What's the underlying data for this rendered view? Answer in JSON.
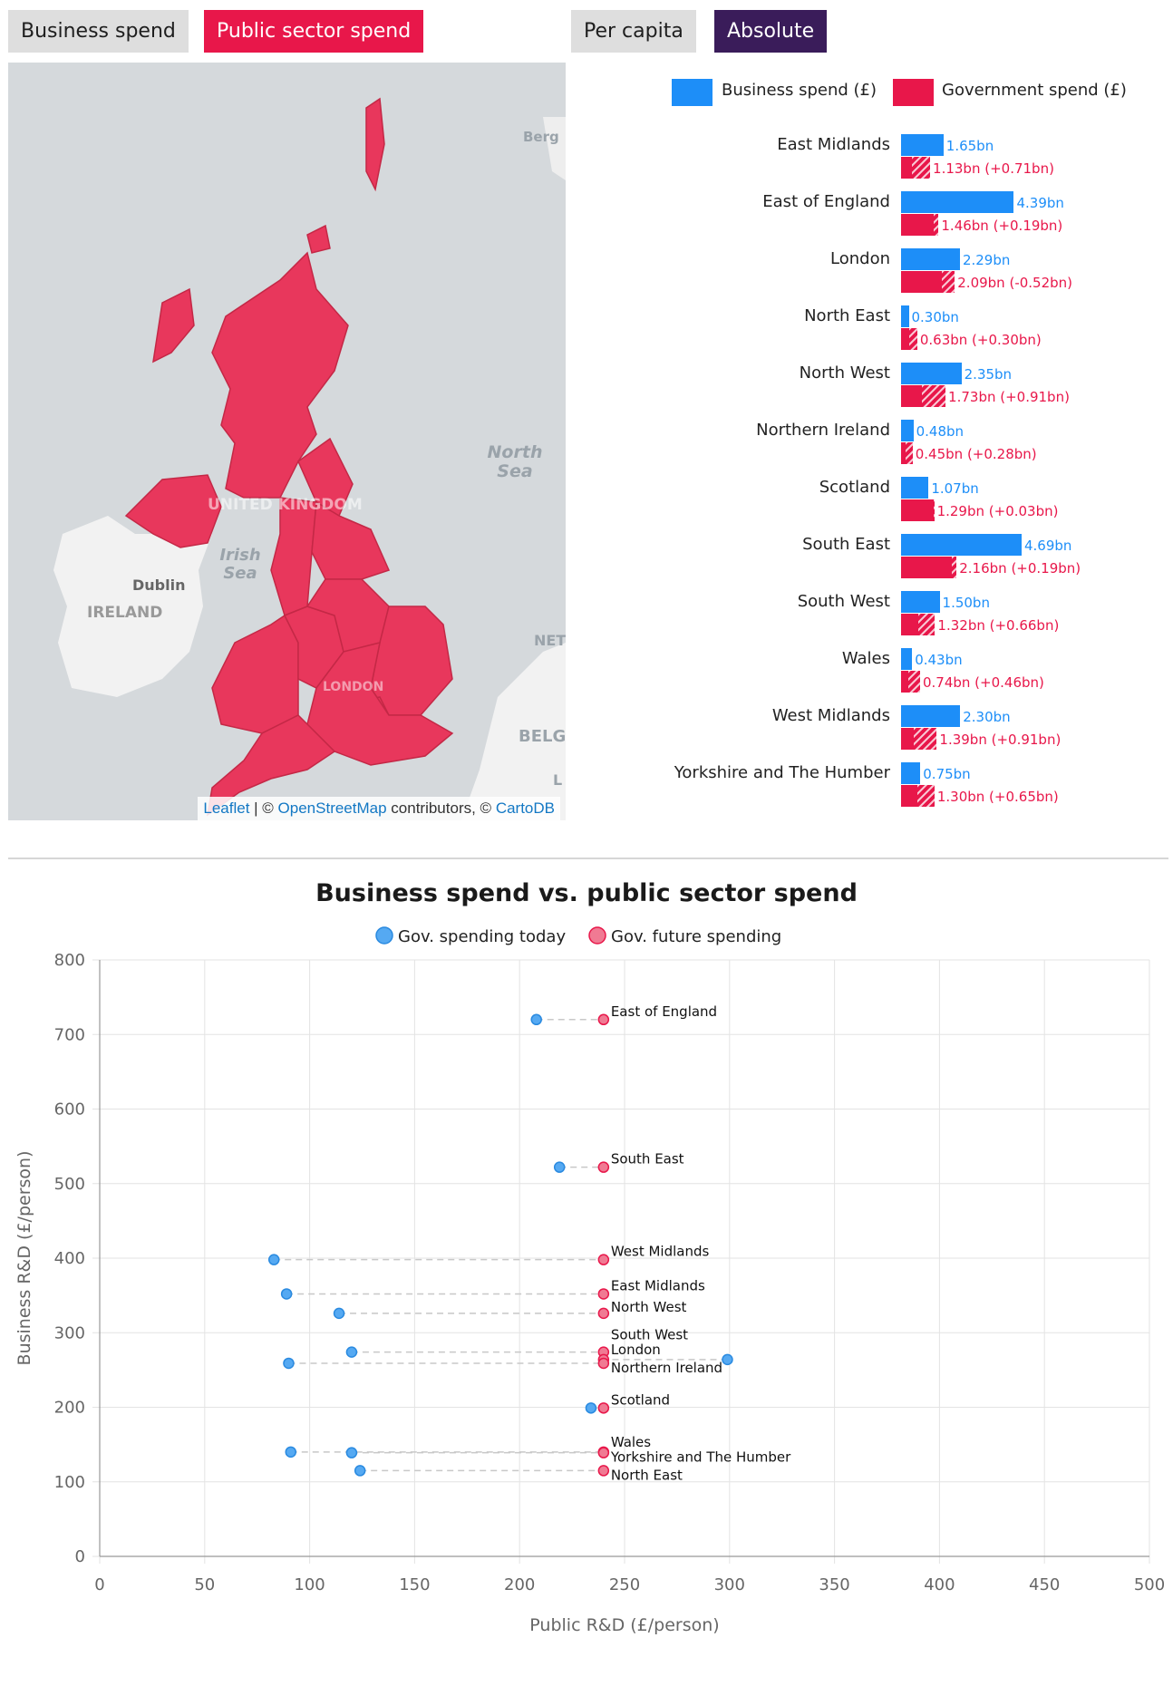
{
  "toggles": {
    "spend_type": [
      "Business spend",
      "Public sector spend"
    ],
    "spend_type_selected": "Public sector spend",
    "scale": [
      "Per capita",
      "Absolute"
    ],
    "scale_selected": "Absolute"
  },
  "map": {
    "labels": {
      "berg": "Berg",
      "north_sea": "North Sea",
      "united_kingdom": "UNITED KINGDOM",
      "irish_sea": "Irish Sea",
      "dublin": "Dublin",
      "ireland": "IRELAND",
      "london": "LONDON",
      "net": "NET",
      "belg": "BELG",
      "l": "L"
    },
    "attribution": {
      "leaflet": "Leaflet",
      "sep": " | © ",
      "osm": "OpenStreetMap",
      "mid": " contributors, © ",
      "carto": "CartoDB"
    },
    "fill_color": "#e8375c",
    "sea_color": "#d5d9dc",
    "land_color": "#f2f2f2"
  },
  "bar_chart": {
    "legend": {
      "business": "Business spend (£)",
      "government": "Government spend (£)"
    },
    "colors": {
      "business": "#1d8ef8",
      "government": "#e8174a"
    },
    "max_value": 4.69,
    "rows": [
      {
        "region": "East Midlands",
        "business": 1.65,
        "business_label": "1.65bn",
        "government": 1.13,
        "gov_change": 0.71,
        "gov_label": "1.13bn (+0.71bn)"
      },
      {
        "region": "East of England",
        "business": 4.39,
        "business_label": "4.39bn",
        "government": 1.46,
        "gov_change": 0.19,
        "gov_label": "1.46bn (+0.19bn)"
      },
      {
        "region": "London",
        "business": 2.29,
        "business_label": "2.29bn",
        "government": 2.09,
        "gov_change": -0.52,
        "gov_label": "2.09bn (-0.52bn)"
      },
      {
        "region": "North East",
        "business": 0.3,
        "business_label": "0.30bn",
        "government": 0.63,
        "gov_change": 0.3,
        "gov_label": "0.63bn (+0.30bn)"
      },
      {
        "region": "North West",
        "business": 2.35,
        "business_label": "2.35bn",
        "government": 1.73,
        "gov_change": 0.91,
        "gov_label": "1.73bn (+0.91bn)"
      },
      {
        "region": "Northern Ireland",
        "business": 0.48,
        "business_label": "0.48bn",
        "government": 0.45,
        "gov_change": 0.28,
        "gov_label": "0.45bn (+0.28bn)"
      },
      {
        "region": "Scotland",
        "business": 1.07,
        "business_label": "1.07bn",
        "government": 1.29,
        "gov_change": 0.03,
        "gov_label": "1.29bn (+0.03bn)"
      },
      {
        "region": "South East",
        "business": 4.69,
        "business_label": "4.69bn",
        "government": 2.16,
        "gov_change": 0.19,
        "gov_label": "2.16bn (+0.19bn)"
      },
      {
        "region": "South West",
        "business": 1.5,
        "business_label": "1.50bn",
        "government": 1.32,
        "gov_change": 0.66,
        "gov_label": "1.32bn (+0.66bn)"
      },
      {
        "region": "Wales",
        "business": 0.43,
        "business_label": "0.43bn",
        "government": 0.74,
        "gov_change": 0.46,
        "gov_label": "0.74bn (+0.46bn)"
      },
      {
        "region": "West Midlands",
        "business": 2.3,
        "business_label": "2.30bn",
        "government": 1.39,
        "gov_change": 0.91,
        "gov_label": "1.39bn (+0.91bn)"
      },
      {
        "region": "Yorkshire and The Humber",
        "business": 0.75,
        "business_label": "0.75bn",
        "government": 1.3,
        "gov_change": 0.65,
        "gov_label": "1.30bn (+0.65bn)"
      }
    ]
  },
  "chart_data": {
    "type": "scatter",
    "title": "Business spend vs. public sector spend",
    "xlabel": "Public R&D (£/person)",
    "ylabel": "Business R&D (£/person)",
    "xlim": [
      0,
      500
    ],
    "ylim": [
      0,
      800
    ],
    "xticks": [
      0,
      50,
      100,
      150,
      200,
      250,
      300,
      350,
      400,
      450,
      500
    ],
    "yticks": [
      0,
      100,
      200,
      300,
      400,
      500,
      600,
      700,
      800
    ],
    "grid": true,
    "legend_position": "top",
    "series": [
      {
        "name": "Gov. spending today",
        "color": "#55a9f2",
        "border": "#2a8ae0"
      },
      {
        "name": "Gov. future spending",
        "color": "#f07a93",
        "border": "#e8174a"
      }
    ],
    "points": [
      {
        "label": "East of England",
        "y": 720,
        "today": 208,
        "future": 240
      },
      {
        "label": "South East",
        "y": 522,
        "today": 219,
        "future": 240
      },
      {
        "label": "West Midlands",
        "y": 398,
        "today": 83,
        "future": 240
      },
      {
        "label": "East Midlands",
        "y": 352,
        "today": 89,
        "future": 240
      },
      {
        "label": "North West",
        "y": 326,
        "today": 114,
        "future": 240
      },
      {
        "label": "South West",
        "y": 274,
        "today": 120,
        "future": 240
      },
      {
        "label": "London",
        "y": 264,
        "today": 299,
        "future": 240
      },
      {
        "label": "Northern Ireland",
        "y": 259,
        "today": 90,
        "future": 240
      },
      {
        "label": "Scotland",
        "y": 199,
        "today": 234,
        "future": 240
      },
      {
        "label": "Wales",
        "y": 140,
        "today": 91,
        "future": 240
      },
      {
        "label": "Yorkshire and The Humber",
        "y": 139,
        "today": 120,
        "future": 240
      },
      {
        "label": "North East",
        "y": 115,
        "today": 124,
        "future": 240
      }
    ]
  }
}
